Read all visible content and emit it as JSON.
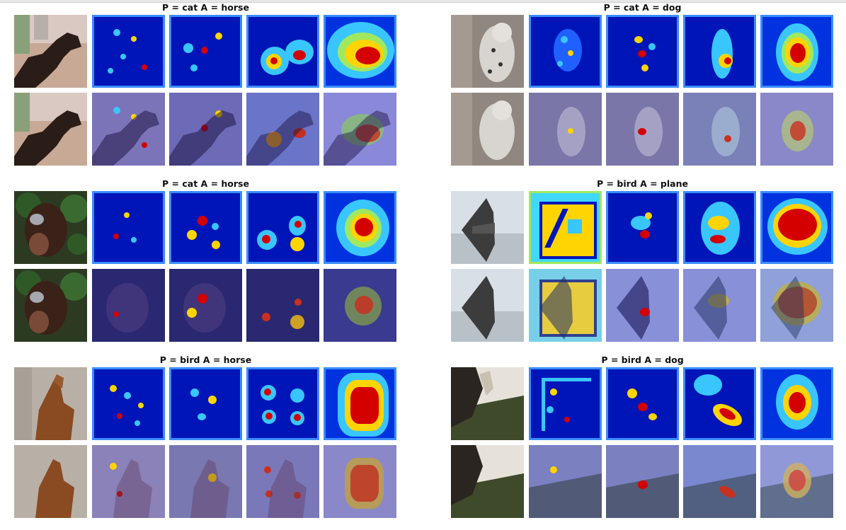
{
  "panels": [
    {
      "title": "P = cat A = horse",
      "scene": "horse-dark"
    },
    {
      "title": "P = cat A = dog",
      "scene": "dog-dalmatian"
    },
    {
      "title": "P = cat A = horse",
      "scene": "horse-green"
    },
    {
      "title": "P = bird A = plane",
      "scene": "plane"
    },
    {
      "title": "P = bird A = horse",
      "scene": "horse-brown"
    },
    {
      "title": "P = bird A = dog",
      "scene": "dog-field"
    }
  ],
  "colors": {
    "heat_background": "#0015b8",
    "heat_hot": "#d40000",
    "heat_warm": "#ffd400",
    "heat_cool": "#39c6ff"
  }
}
